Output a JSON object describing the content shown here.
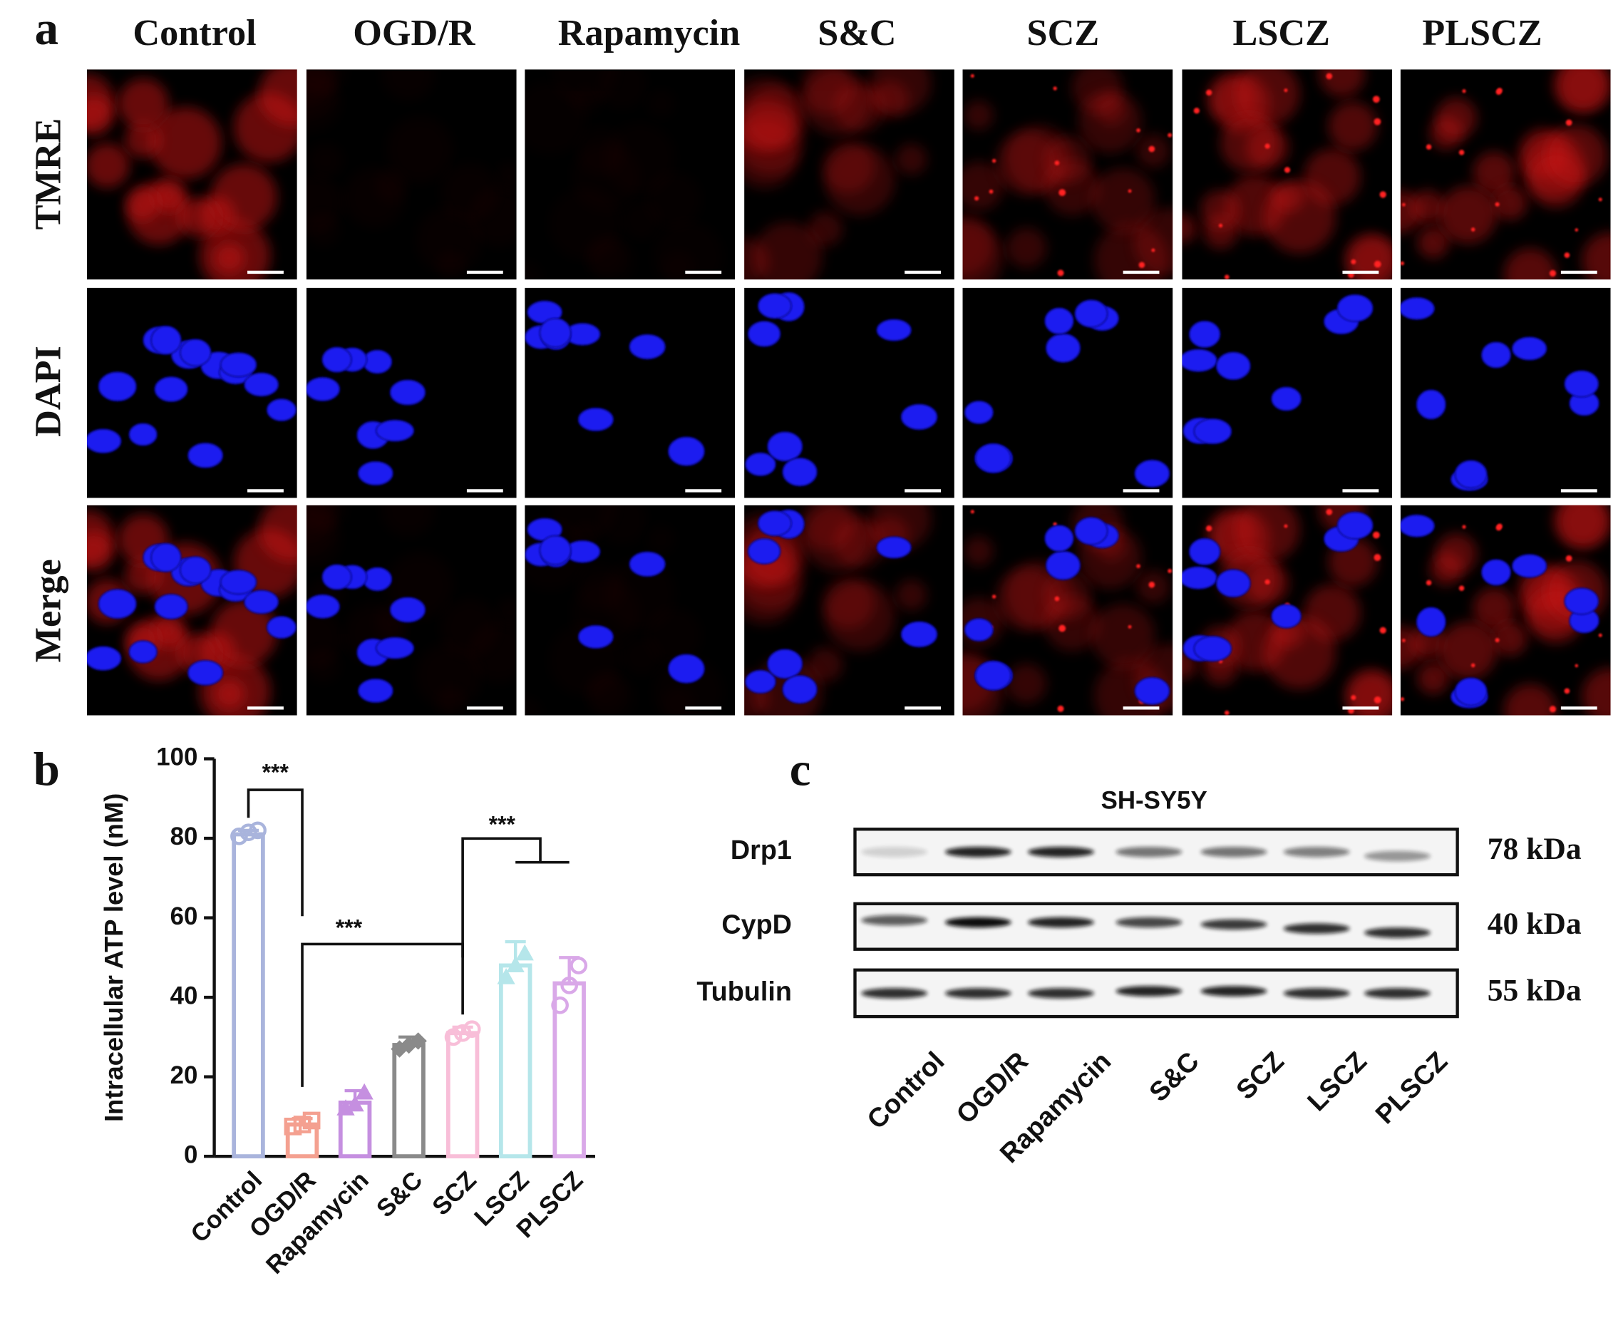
{
  "panel_a": {
    "label": "a",
    "columns": [
      "Control",
      "OGD/R",
      "Rapamycin",
      "S&C",
      "SCZ",
      "LSCZ",
      "PLSCZ"
    ],
    "rows": [
      "TMRE",
      "DAPI",
      "Merge"
    ]
  },
  "chart_data": {
    "type": "bar",
    "label": "b",
    "y_label": "Intracellular ATP level (nM)",
    "categories": [
      "Control",
      "OGD/R",
      "Rapamycin",
      "S&C",
      "SCZ",
      "LSCZ",
      "PLSCZ"
    ],
    "values": [
      81,
      8,
      13.5,
      28,
      31,
      48,
      43.5
    ],
    "errors": [
      1,
      1.5,
      3,
      2,
      1.5,
      6,
      6.5
    ],
    "points": [
      [
        80.5,
        81.5,
        82
      ],
      [
        7.5,
        8,
        9
      ],
      [
        12,
        13,
        16
      ],
      [
        27,
        28,
        29
      ],
      [
        30,
        31,
        32
      ],
      [
        45,
        48,
        51
      ],
      [
        38,
        43,
        48
      ]
    ],
    "colors": [
      "#a9b4dc",
      "#f4a090",
      "#c58fe0",
      "#8a8a8a",
      "#f8bed8",
      "#b5e6ea",
      "#d9a8e8"
    ],
    "ylim": [
      0,
      100
    ],
    "yticks": [
      0,
      20,
      40,
      60,
      80,
      100
    ],
    "annotations": [
      "***",
      "***",
      "***"
    ]
  },
  "panel_c": {
    "label": "c",
    "title": "SH-SY5Y",
    "proteins": [
      "Drp1",
      "CypD",
      "Tubulin"
    ],
    "sizes": [
      "78 kDa",
      "40 kDa",
      "55 kDa"
    ],
    "lanes": [
      "Control",
      "OGD/R",
      "Rapamycin",
      "S&C",
      "SCZ",
      "LSCZ",
      "PLSCZ"
    ]
  }
}
